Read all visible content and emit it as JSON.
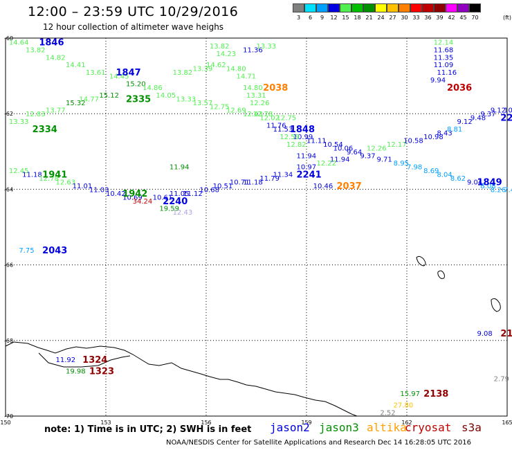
{
  "header": {
    "title": "12:00 – 23:59 UTC 10/29/2016",
    "subtitle": "12 hour collection of altimeter wave heighs",
    "unit": "(ft)"
  },
  "colorscale": [
    {
      "label": "3",
      "color": "#808080"
    },
    {
      "label": "6",
      "color": "#00e0ff"
    },
    {
      "label": "9",
      "color": "#00a0ff"
    },
    {
      "label": "12",
      "color": "#0000e0"
    },
    {
      "label": "15",
      "color": "#50f050"
    },
    {
      "label": "18",
      "color": "#00c000"
    },
    {
      "label": "21",
      "color": "#009000"
    },
    {
      "label": "24",
      "color": "#ffff00"
    },
    {
      "label": "27",
      "color": "#ffc000"
    },
    {
      "label": "30",
      "color": "#ff8000"
    },
    {
      "label": "33",
      "color": "#ff0000"
    },
    {
      "label": "36",
      "color": "#c00000"
    },
    {
      "label": "39",
      "color": "#900000"
    },
    {
      "label": "42",
      "color": "#ff00ff"
    },
    {
      "label": "45",
      "color": "#9000c0"
    },
    {
      "label": "70",
      "color": "#000000"
    }
  ],
  "axes": {
    "lat_labels": [
      "-60",
      "-62",
      "-64",
      "-66",
      "-68",
      "-70"
    ],
    "lon_labels": [
      "150",
      "153",
      "156",
      "159",
      "162",
      "165"
    ]
  },
  "passes": [
    {
      "label": "1846",
      "color": "#0000e0",
      "lon": 151.0,
      "lat": -60.1
    },
    {
      "label": "1847",
      "color": "#0000e0",
      "lon": 153.3,
      "lat": -60.9
    },
    {
      "label": "2335",
      "color": "#009000",
      "lon": 153.6,
      "lat": -61.6
    },
    {
      "label": "2334",
      "color": "#009000",
      "lon": 150.8,
      "lat": -62.4
    },
    {
      "label": "2038",
      "color": "#ff8000",
      "lon": 157.7,
      "lat": -61.3
    },
    {
      "label": "2036",
      "color": "#c00000",
      "lon": 163.2,
      "lat": -61.3
    },
    {
      "label": "1848",
      "color": "#0000e0",
      "lon": 158.5,
      "lat": -62.4
    },
    {
      "label": "22",
      "color": "#0000e0",
      "lon": 164.8,
      "lat": -62.1
    },
    {
      "label": "1941",
      "color": "#009000",
      "lon": 151.1,
      "lat": -63.6
    },
    {
      "label": "1942",
      "color": "#009000",
      "lon": 153.5,
      "lat": -64.1
    },
    {
      "label": "2240",
      "color": "#0000e0",
      "lon": 154.7,
      "lat": -64.3
    },
    {
      "label": "2241",
      "color": "#0000e0",
      "lon": 158.7,
      "lat": -63.6
    },
    {
      "label": "2037",
      "color": "#ff8000",
      "lon": 159.9,
      "lat": -63.9
    },
    {
      "label": "1849",
      "color": "#0000e0",
      "lon": 164.1,
      "lat": -63.8
    },
    {
      "label": "2043",
      "color": "#0000e0",
      "lon": 151.1,
      "lat": -65.6
    },
    {
      "label": "21",
      "color": "#900000",
      "lon": 164.8,
      "lat": -67.8
    },
    {
      "label": "1324",
      "color": "#900000",
      "lon": 152.3,
      "lat": -68.5
    },
    {
      "label": "1323",
      "color": "#900000",
      "lon": 152.5,
      "lat": -68.8
    },
    {
      "label": "2138",
      "color": "#900000",
      "lon": 162.5,
      "lat": -69.4
    }
  ],
  "readings": [
    {
      "v": "14.64",
      "c": "#50f050",
      "lon": 150.1,
      "lat": -60.1
    },
    {
      "v": "13.82",
      "c": "#50f050",
      "lon": 150.6,
      "lat": -60.3
    },
    {
      "v": "14.82",
      "c": "#50f050",
      "lon": 151.2,
      "lat": -60.5
    },
    {
      "v": "14.41",
      "c": "#50f050",
      "lon": 151.8,
      "lat": -60.7
    },
    {
      "v": "13.61",
      "c": "#50f050",
      "lon": 152.4,
      "lat": -60.9
    },
    {
      "v": "14.45",
      "c": "#50f050",
      "lon": 153.1,
      "lat": -61.0
    },
    {
      "v": "15.20",
      "c": "#009000",
      "lon": 153.6,
      "lat": -61.2
    },
    {
      "v": "14.86",
      "c": "#50f050",
      "lon": 154.1,
      "lat": -61.3
    },
    {
      "v": "14.05",
      "c": "#50f050",
      "lon": 154.5,
      "lat": -61.5
    },
    {
      "v": "13.33",
      "c": "#50f050",
      "lon": 155.1,
      "lat": -61.6
    },
    {
      "v": "13.57",
      "c": "#50f050",
      "lon": 155.6,
      "lat": -61.7
    },
    {
      "v": "12.75",
      "c": "#50f050",
      "lon": 156.1,
      "lat": -61.8
    },
    {
      "v": "12.69",
      "c": "#50f050",
      "lon": 156.6,
      "lat": -61.9
    },
    {
      "v": "12.43",
      "c": "#50f050",
      "lon": 157.1,
      "lat": -62.0
    },
    {
      "v": "12.02",
      "c": "#50f050",
      "lon": 157.6,
      "lat": -62.1
    },
    {
      "v": "12.75",
      "c": "#50f050",
      "lon": 158.1,
      "lat": -62.1
    },
    {
      "v": "13.82",
      "c": "#50f050",
      "lon": 156.1,
      "lat": -60.2
    },
    {
      "v": "14.23",
      "c": "#50f050",
      "lon": 156.3,
      "lat": -60.4
    },
    {
      "v": "14.80",
      "c": "#50f050",
      "lon": 156.6,
      "lat": -60.8
    },
    {
      "v": "14.71",
      "c": "#50f050",
      "lon": 156.9,
      "lat": -61.0
    },
    {
      "v": "14.80",
      "c": "#50f050",
      "lon": 157.1,
      "lat": -61.3
    },
    {
      "v": "13.31",
      "c": "#50f050",
      "lon": 157.2,
      "lat": -61.5
    },
    {
      "v": "12.26",
      "c": "#50f050",
      "lon": 157.3,
      "lat": -61.7
    },
    {
      "v": "12.78",
      "c": "#50f050",
      "lon": 157.4,
      "lat": -62.0
    },
    {
      "v": "11.36",
      "c": "#0000e0",
      "lon": 157.1,
      "lat": -60.3
    },
    {
      "v": "13.33",
      "c": "#50f050",
      "lon": 157.5,
      "lat": -60.2
    },
    {
      "v": "13.82",
      "c": "#50f050",
      "lon": 155.0,
      "lat": -60.9
    },
    {
      "v": "13.39",
      "c": "#50f050",
      "lon": 155.6,
      "lat": -60.8
    },
    {
      "v": "14.62",
      "c": "#50f050",
      "lon": 156.0,
      "lat": -60.7
    },
    {
      "v": "15.12",
      "c": "#009000",
      "lon": 152.8,
      "lat": -61.5
    },
    {
      "v": "14.77",
      "c": "#50f050",
      "lon": 152.2,
      "lat": -61.6
    },
    {
      "v": "15.32",
      "c": "#009000",
      "lon": 151.8,
      "lat": -61.7
    },
    {
      "v": "13.77",
      "c": "#50f050",
      "lon": 151.2,
      "lat": -61.9
    },
    {
      "v": "12.83",
      "c": "#50f050",
      "lon": 150.6,
      "lat": -62.0
    },
    {
      "v": "13.33",
      "c": "#50f050",
      "lon": 150.1,
      "lat": -62.2
    },
    {
      "v": "11.76",
      "c": "#0000e0",
      "lon": 157.8,
      "lat": -62.3
    },
    {
      "v": "11.53",
      "c": "#0000e0",
      "lon": 158.0,
      "lat": -62.4
    },
    {
      "v": "10.99",
      "c": "#0000e0",
      "lon": 158.6,
      "lat": -62.6
    },
    {
      "v": "12.59",
      "c": "#50f050",
      "lon": 158.2,
      "lat": -62.6
    },
    {
      "v": "11.11",
      "c": "#0000e0",
      "lon": 159.0,
      "lat": -62.7
    },
    {
      "v": "12.82",
      "c": "#50f050",
      "lon": 158.4,
      "lat": -62.8
    },
    {
      "v": "10.54",
      "c": "#0000e0",
      "lon": 159.5,
      "lat": -62.8
    },
    {
      "v": "10.06",
      "c": "#0000e0",
      "lon": 159.8,
      "lat": -62.9
    },
    {
      "v": "9.64",
      "c": "#0000e0",
      "lon": 160.2,
      "lat": -63.0
    },
    {
      "v": "9.37",
      "c": "#0000e0",
      "lon": 160.6,
      "lat": -63.1
    },
    {
      "v": "11.94",
      "c": "#0000e0",
      "lon": 158.7,
      "lat": -63.1
    },
    {
      "v": "11.94",
      "c": "#0000e0",
      "lon": 159.7,
      "lat": -63.2
    },
    {
      "v": "9.71",
      "c": "#0000e0",
      "lon": 161.1,
      "lat": -63.2
    },
    {
      "v": "12.22",
      "c": "#50f050",
      "lon": 159.3,
      "lat": -63.3
    },
    {
      "v": "12.26",
      "c": "#50f050",
      "lon": 160.8,
      "lat": -62.9
    },
    {
      "v": "12.17",
      "c": "#50f050",
      "lon": 161.4,
      "lat": -62.8
    },
    {
      "v": "10.58",
      "c": "#0000e0",
      "lon": 161.9,
      "lat": -62.7
    },
    {
      "v": "10.98",
      "c": "#0000e0",
      "lon": 162.5,
      "lat": -62.6
    },
    {
      "v": "8.43",
      "c": "#0000e0",
      "lon": 162.9,
      "lat": -62.5
    },
    {
      "v": "8.81",
      "c": "#00a0ff",
      "lon": 163.2,
      "lat": -62.4
    },
    {
      "v": "9.12",
      "c": "#0000e0",
      "lon": 163.5,
      "lat": -62.2
    },
    {
      "v": "9.48",
      "c": "#0000e0",
      "lon": 163.9,
      "lat": -62.1
    },
    {
      "v": "9.37",
      "c": "#0000e0",
      "lon": 164.2,
      "lat": -62.0
    },
    {
      "v": "9.12",
      "c": "#0000e0",
      "lon": 164.5,
      "lat": -61.9
    },
    {
      "v": "10.2",
      "c": "#0000e0",
      "lon": 164.9,
      "lat": -61.9
    },
    {
      "v": "8.95",
      "c": "#00a0ff",
      "lon": 161.6,
      "lat": -63.3
    },
    {
      "v": "7.98",
      "c": "#00a0ff",
      "lon": 162.0,
      "lat": -63.4
    },
    {
      "v": "8.69",
      "c": "#00a0ff",
      "lon": 162.5,
      "lat": -63.5
    },
    {
      "v": "8.04",
      "c": "#00a0ff",
      "lon": 162.9,
      "lat": -63.6
    },
    {
      "v": "8.62",
      "c": "#00a0ff",
      "lon": 163.3,
      "lat": -63.7
    },
    {
      "v": "9.04",
      "c": "#0000e0",
      "lon": 163.8,
      "lat": -63.8
    },
    {
      "v": "8.08",
      "c": "#00a0ff",
      "lon": 164.2,
      "lat": -63.9
    },
    {
      "v": "8.26",
      "c": "#00a0ff",
      "lon": 164.5,
      "lat": -64.0
    },
    {
      "v": "7.4",
      "c": "#00a0ff",
      "lon": 164.9,
      "lat": -64.0
    },
    {
      "v": "10.97",
      "c": "#0000e0",
      "lon": 158.7,
      "lat": -63.4
    },
    {
      "v": "10.46",
      "c": "#0000e0",
      "lon": 159.2,
      "lat": -63.9
    },
    {
      "v": "11.34",
      "c": "#0000e0",
      "lon": 158.0,
      "lat": -63.6
    },
    {
      "v": "11.79",
      "c": "#0000e0",
      "lon": 157.6,
      "lat": -63.7
    },
    {
      "v": "11.18",
      "c": "#0000e0",
      "lon": 157.1,
      "lat": -63.8
    },
    {
      "v": "10.71",
      "c": "#0000e0",
      "lon": 156.7,
      "lat": -63.8
    },
    {
      "v": "10.51",
      "c": "#0000e0",
      "lon": 156.2,
      "lat": -63.9
    },
    {
      "v": "10.68",
      "c": "#0000e0",
      "lon": 155.8,
      "lat": -64.0
    },
    {
      "v": "11.12",
      "c": "#0000e0",
      "lon": 155.3,
      "lat": -64.1
    },
    {
      "v": "11.05",
      "c": "#0000e0",
      "lon": 154.9,
      "lat": -64.1
    },
    {
      "v": "10.61",
      "c": "#0000e0",
      "lon": 154.4,
      "lat": -64.2
    },
    {
      "v": "11.94",
      "c": "#009000",
      "lon": 154.9,
      "lat": -63.4
    },
    {
      "v": "12.45",
      "c": "#50f050",
      "lon": 150.1,
      "lat": -63.5
    },
    {
      "v": "11.18",
      "c": "#0000e0",
      "lon": 150.5,
      "lat": -63.6
    },
    {
      "v": "12.78",
      "c": "#50f050",
      "lon": 151.0,
      "lat": -63.7
    },
    {
      "v": "12.63",
      "c": "#50f050",
      "lon": 151.5,
      "lat": -63.8
    },
    {
      "v": "11.01",
      "c": "#0000e0",
      "lon": 152.0,
      "lat": -63.9
    },
    {
      "v": "11.03",
      "c": "#0000e0",
      "lon": 152.5,
      "lat": -64.0
    },
    {
      "v": "10.42",
      "c": "#0000e0",
      "lon": 153.0,
      "lat": -64.1
    },
    {
      "v": "10.69",
      "c": "#0000e0",
      "lon": 153.5,
      "lat": -64.2
    },
    {
      "v": "34.24",
      "c": "#c00000",
      "lon": 153.8,
      "lat": -64.3
    },
    {
      "v": "19.59",
      "c": "#009000",
      "lon": 154.6,
      "lat": -64.5
    },
    {
      "v": "12.43",
      "c": "#b0a0e0",
      "lon": 155.0,
      "lat": -64.6
    },
    {
      "v": "7.75",
      "c": "#00a0ff",
      "lon": 150.4,
      "lat": -65.6
    },
    {
      "v": "12.14",
      "c": "#50f050",
      "lon": 162.8,
      "lat": -60.1
    },
    {
      "v": "11.68",
      "c": "#0000e0",
      "lon": 162.8,
      "lat": -60.3
    },
    {
      "v": "11.35",
      "c": "#0000e0",
      "lon": 162.8,
      "lat": -60.5
    },
    {
      "v": "11.09",
      "c": "#0000e0",
      "lon": 162.8,
      "lat": -60.7
    },
    {
      "v": "11.16",
      "c": "#0000e0",
      "lon": 162.9,
      "lat": -60.9
    },
    {
      "v": "9.94",
      "c": "#0000e0",
      "lon": 162.7,
      "lat": -61.1
    },
    {
      "v": "9.08",
      "c": "#0000e0",
      "lon": 164.1,
      "lat": -67.8
    },
    {
      "v": "11.92",
      "c": "#0000e0",
      "lon": 151.5,
      "lat": -68.5
    },
    {
      "v": "19.98",
      "c": "#009000",
      "lon": 151.8,
      "lat": -68.8
    },
    {
      "v": "15.97",
      "c": "#009000",
      "lon": 161.8,
      "lat": -69.4
    },
    {
      "v": "27.80",
      "c": "#ffc000",
      "lon": 161.6,
      "lat": -69.7
    },
    {
      "v": "2.52",
      "c": "#808080",
      "lon": 161.2,
      "lat": -69.9
    },
    {
      "v": "2.79",
      "c": "#808080",
      "lon": 164.6,
      "lat": -69.0
    }
  ],
  "footer": {
    "note": "note: 1) Time is in UTC; 2) SWH is in feet",
    "legend": [
      {
        "name": "jason2",
        "color": "#0000e0"
      },
      {
        "name": "jason3",
        "color": "#009000"
      },
      {
        "name": "altika",
        "color": "#ffa000"
      },
      {
        "name": "cryosat",
        "color": "#c00000"
      },
      {
        "name": "s3a",
        "color": "#800000"
      }
    ],
    "credit": "NOAA/NESDIS Center for Satellite Applications and Research    Dec 14 16:28:05 UTC 2016"
  }
}
